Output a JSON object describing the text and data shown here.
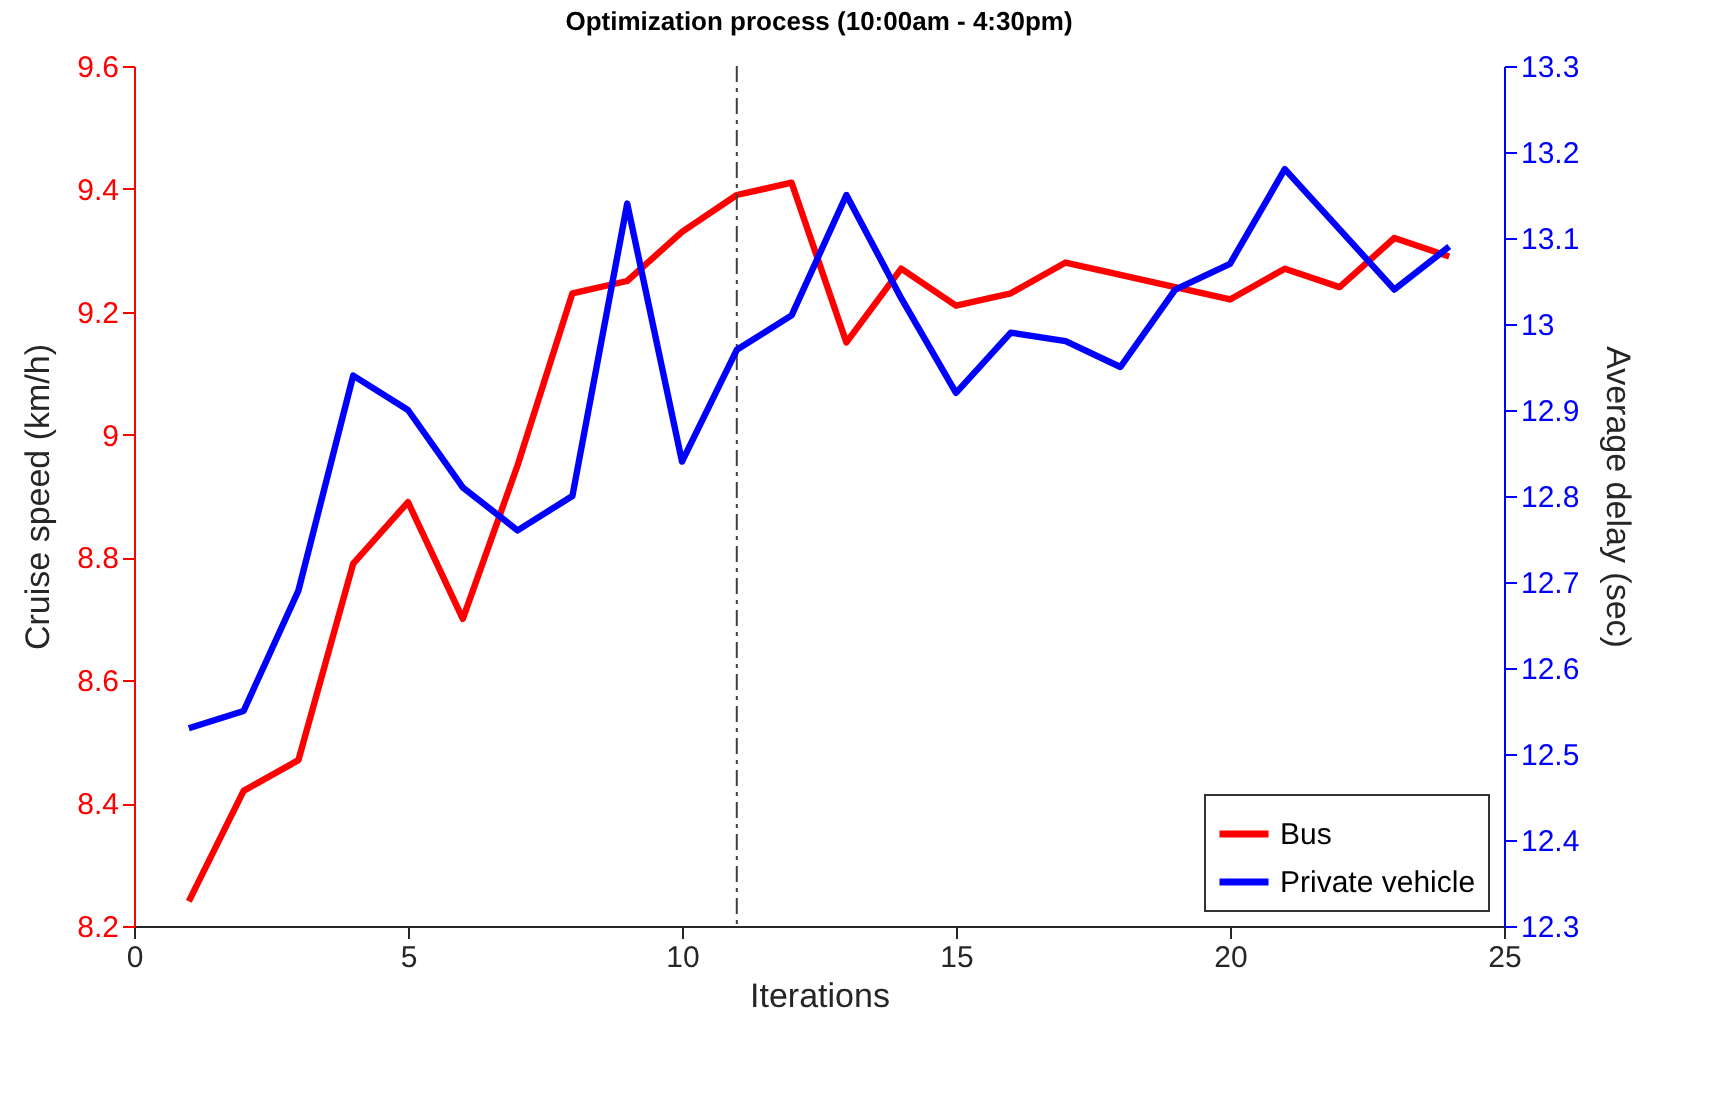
{
  "chart_data": {
    "type": "line",
    "title": "Optimization process (10:00am - 4:30pm)",
    "xlabel": "Iterations",
    "ylabel": "Cruise speed (km/h)",
    "y2label": "Average delay (sec)",
    "x": [
      1,
      2,
      3,
      4,
      5,
      6,
      7,
      8,
      9,
      10,
      11,
      12,
      13,
      14,
      15,
      16,
      17,
      18,
      19,
      20,
      21,
      22,
      23,
      24
    ],
    "series": [
      {
        "name": "Bus",
        "color": "#ff0000",
        "values": [
          8.24,
          8.42,
          8.47,
          8.79,
          8.89,
          8.7,
          8.95,
          9.23,
          9.25,
          9.33,
          9.39,
          9.41,
          9.15,
          9.27,
          9.21,
          9.23,
          9.28,
          9.26,
          9.24,
          9.22,
          9.27,
          9.24,
          9.32,
          9.29
        ]
      },
      {
        "name": "Private vehicle",
        "color": "#0000ff",
        "axis": "y2",
        "values": [
          12.53,
          12.55,
          12.69,
          12.94,
          12.9,
          12.81,
          12.76,
          12.8,
          13.14,
          12.84,
          12.97,
          13.01,
          13.15,
          13.03,
          12.92,
          12.99,
          12.98,
          12.95,
          13.04,
          13.07,
          13.18,
          13.11,
          13.04,
          13.09
        ]
      }
    ],
    "xlim": [
      0,
      25
    ],
    "xticks": [
      0,
      5,
      10,
      15,
      20,
      25
    ],
    "ylim": [
      8.2,
      9.6
    ],
    "yticks": [
      8.2,
      8.4,
      8.6,
      8.8,
      9,
      9.2,
      9.4,
      9.6
    ],
    "y2lim": [
      12.3,
      13.3
    ],
    "y2ticks": [
      12.3,
      12.4,
      12.5,
      12.6,
      12.7,
      12.8,
      12.9,
      13,
      13.1,
      13.2,
      13.3
    ],
    "ref_lines": [
      {
        "axis": "x",
        "value": 11,
        "color": "#404040",
        "line_style": "dashed"
      }
    ],
    "legend": "bottom right",
    "grid": false,
    "marker": "none",
    "line_style": "solid"
  }
}
